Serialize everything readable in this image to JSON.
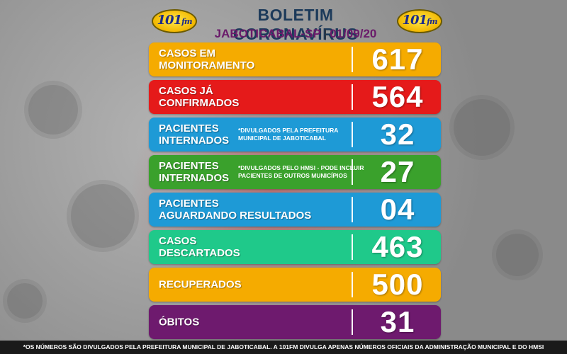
{
  "header": {
    "title": "BOLETIM CORONAVÍRUS",
    "city": "JABOTICABAL-SP",
    "separator": "|",
    "date": "01/09/20",
    "logo_left": {
      "number": "101",
      "suffix": "fm"
    },
    "logo_right": {
      "number": "101",
      "suffix": "fm"
    }
  },
  "rows": [
    {
      "label_line1": "CASOS EM",
      "label_line2": "MONITORAMENTO",
      "note": "",
      "value": "617",
      "color": "#f5ab00"
    },
    {
      "label_line1": "CASOS JÁ",
      "label_line2": "CONFIRMADOS",
      "note": "",
      "value": "564",
      "color": "#e51a1a"
    },
    {
      "label_line1": "PACIENTES",
      "label_line2": "INTERNADOS",
      "note_line1": "*DIVULGADOS PELA PREFEITURA",
      "note_line2": "MUNICIPAL DE JABOTICABAL",
      "value": "32",
      "color": "#1e9ad6"
    },
    {
      "label_line1": "PACIENTES",
      "label_line2": "INTERNADOS",
      "note_line1": "*DIVULGADOS PELO HMSI - PODE INCLUIR",
      "note_line2": "PACIENTES DE OUTROS MUNICÍPIOS",
      "value": "27",
      "color": "#3aa12c"
    },
    {
      "label_line1": "PACIENTES",
      "label_line2": "AGUARDANDO RESULTADOS",
      "note": "",
      "value": "04",
      "color": "#1e9ad6"
    },
    {
      "label_line1": "CASOS",
      "label_line2": "DESCARTADOS",
      "note": "",
      "value": "463",
      "color": "#1fc98a"
    },
    {
      "label_line1": "RECUPERADOS",
      "label_line2": "",
      "note": "",
      "value": "500",
      "color": "#f5ab00"
    },
    {
      "label_line1": "ÓBITOS",
      "label_line2": "",
      "note": "",
      "value": "31",
      "color": "#6e1a6e"
    }
  ],
  "footer": "*OS NÚMEROS SÃO DIVULGADOS PELA PREFEITURA MUNICIPAL DE JABOTICABAL. A 101FM DIVULGA APENAS NÚMEROS OFICIAIS DA ADMINISTRAÇÃO MUNICIPAL E DO HMSI"
}
